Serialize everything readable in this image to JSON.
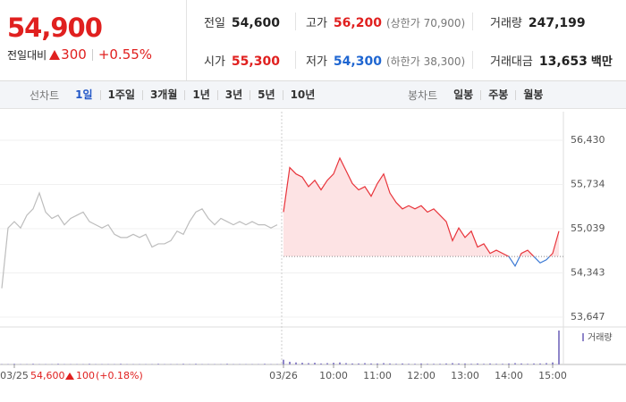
{
  "quote": {
    "price": "54,900",
    "change_label": "전일대비",
    "change": "300",
    "rate": "+0.55%"
  },
  "info": [
    {
      "label": "전일",
      "value": "54,600",
      "color": "#222222"
    },
    {
      "label": "고가",
      "value": "56,200",
      "sub": "(상한가 70,900)",
      "color": "#e0201f"
    },
    {
      "label": "거래량",
      "value": "247,199",
      "color": "#222222"
    },
    {
      "label": "시가",
      "value": "55,300",
      "color": "#e0201f"
    },
    {
      "label": "저가",
      "value": "54,300",
      "sub": "(하한가 38,300)",
      "color": "#1f66d1"
    },
    {
      "label": "거래대금",
      "value": "13,653",
      "unit": "백만",
      "color": "#222222"
    }
  ],
  "tabs": {
    "line_label": "선차트",
    "line": [
      "1일",
      "1주일",
      "3개월",
      "1년",
      "3년",
      "5년",
      "10년"
    ],
    "candle_label": "봉차트",
    "candle": [
      "일봉",
      "주봉",
      "월봉"
    ]
  },
  "chart_data": {
    "type": "line",
    "categories": [
      null,
      null,
      "03/25",
      null,
      null,
      null,
      null,
      null,
      null,
      null,
      null,
      null,
      null,
      null,
      null,
      null,
      null,
      null,
      null,
      null,
      null,
      null,
      null,
      null,
      null,
      null,
      null,
      null,
      null,
      null,
      null,
      null,
      null,
      null,
      null,
      null,
      null,
      null,
      null,
      null,
      null,
      null,
      null,
      null,
      null,
      "03/26",
      null,
      null,
      null,
      null,
      null,
      null,
      null,
      "10:00",
      null,
      null,
      null,
      null,
      null,
      null,
      "11:00",
      null,
      null,
      null,
      null,
      null,
      null,
      "12:00",
      null,
      null,
      null,
      null,
      null,
      null,
      "13:00",
      null,
      null,
      null,
      null,
      null,
      null,
      "14:00",
      null,
      null,
      null,
      null,
      null,
      null,
      "15:00",
      null
    ],
    "series": [
      {
        "color": "#bdbdbd",
        "values": [
          54100,
          55050,
          55150,
          55050,
          55250,
          55350,
          55600,
          55300,
          55200,
          55250,
          55100,
          55200,
          55250,
          55300,
          55150,
          55100,
          55050,
          55100,
          54950,
          54900,
          54900,
          54950,
          54900,
          54950,
          54750,
          54800,
          54800,
          54850,
          55000,
          54950,
          55150,
          55300,
          55350,
          55200,
          55100,
          55200,
          55150,
          55100,
          55150,
          55100,
          55150,
          55100,
          55100,
          55050,
          55100,
          null,
          null,
          null,
          null,
          null,
          null,
          null,
          null,
          null,
          null,
          null,
          null,
          null,
          null,
          null,
          null,
          null,
          null,
          null,
          null,
          null,
          null,
          null,
          null,
          null,
          null,
          null,
          null,
          null,
          null,
          null,
          null,
          null,
          null,
          null,
          null,
          null,
          null,
          null,
          null,
          null,
          null,
          null,
          null,
          null
        ]
      },
      {
        "color": "#e8333a",
        "down_color": "#3a78d4",
        "fill": "#fde3e4",
        "values": [
          null,
          null,
          null,
          null,
          null,
          null,
          null,
          null,
          null,
          null,
          null,
          null,
          null,
          null,
          null,
          null,
          null,
          null,
          null,
          null,
          null,
          null,
          null,
          null,
          null,
          null,
          null,
          null,
          null,
          null,
          null,
          null,
          null,
          null,
          null,
          null,
          null,
          null,
          null,
          null,
          null,
          null,
          null,
          null,
          null,
          55300,
          56000,
          55900,
          55850,
          55700,
          55800,
          55650,
          55800,
          55900,
          56150,
          55950,
          55750,
          55650,
          55700,
          55550,
          55750,
          55900,
          55600,
          55450,
          55350,
          55400,
          55350,
          55400,
          55300,
          55350,
          55250,
          55150,
          54850,
          55050,
          54900,
          55000,
          54750,
          54800,
          54650,
          54700,
          54650,
          54600,
          54450,
          54650,
          54700,
          54600,
          54500,
          54550,
          54650,
          55000
        ]
      }
    ],
    "baseline": 54600,
    "ylim": [
      53506,
      56880
    ],
    "yticks": [
      {
        "value": 56430,
        "label": "56,430"
      },
      {
        "value": 55734,
        "label": "55,734"
      },
      {
        "value": 55039,
        "label": "55,039"
      },
      {
        "value": 54343,
        "label": "54,343"
      },
      {
        "value": 53647,
        "label": "53,647"
      }
    ],
    "grid": true,
    "volume": {
      "name": "거래량",
      "color": "#8f86c9",
      "values": [
        1,
        1,
        2,
        1,
        1,
        2,
        1,
        1,
        1,
        2,
        1,
        1,
        1,
        1,
        2,
        1,
        1,
        1,
        1,
        2,
        1,
        1,
        1,
        1,
        1,
        2,
        1,
        1,
        1,
        2,
        1,
        2,
        1,
        1,
        1,
        1,
        2,
        1,
        1,
        1,
        1,
        1,
        2,
        1,
        1,
        14,
        8,
        6,
        5,
        4,
        5,
        3,
        4,
        5,
        6,
        4,
        3,
        3,
        4,
        3,
        3,
        4,
        3,
        2,
        3,
        2,
        2,
        3,
        2,
        2,
        2,
        3,
        4,
        3,
        3,
        2,
        3,
        2,
        3,
        2,
        2,
        3,
        4,
        3,
        2,
        3,
        3,
        4,
        6,
        100
      ]
    },
    "footer": {
      "price": "54,600",
      "change": "100",
      "rate": "(+0.18%)"
    }
  }
}
